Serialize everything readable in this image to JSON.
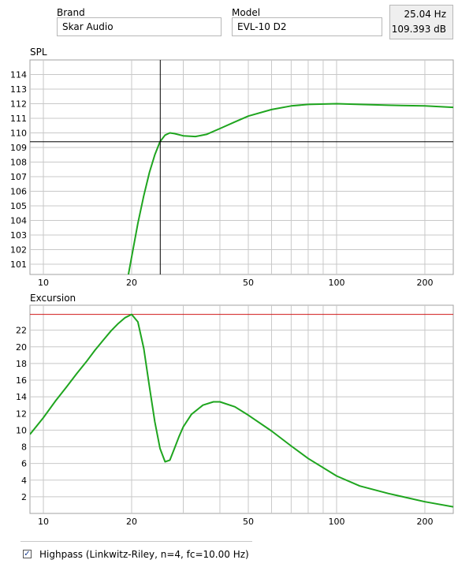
{
  "header": {
    "brand_label": "Brand",
    "brand_value": "Skar Audio",
    "model_label": "Model",
    "model_value": "EVL-10 D2",
    "readout_freq": "25.04 Hz",
    "readout_spl": "109.393 dB"
  },
  "spl_panel": {
    "title": "SPL"
  },
  "excursion_panel": {
    "title": "Excursion"
  },
  "filter": {
    "checked": true,
    "checkbox_glyph": "✓",
    "label": "Highpass (Linkwitz-Riley, n=4, fc=10.00 Hz)"
  },
  "colors": {
    "curve": "#1fa51f",
    "grid": "#c8c8c8",
    "cursor": "#000000",
    "limit_line": "#d01818"
  },
  "chart_data": [
    {
      "type": "line",
      "title": "SPL",
      "x_scale": "log",
      "xlim": [
        9,
        250
      ],
      "ylim": [
        100.3,
        115
      ],
      "x_tick_labels": [
        "10",
        "20",
        "50",
        "100",
        "200"
      ],
      "y_tick_labels": [
        "101",
        "102",
        "103",
        "104",
        "105",
        "106",
        "107",
        "108",
        "109",
        "110",
        "111",
        "112",
        "113",
        "114"
      ],
      "cursor": {
        "x": 25.04,
        "y": 109.393
      },
      "series": [
        {
          "x": [
            19.5,
            20,
            21,
            22,
            23,
            24,
            25,
            26,
            27,
            28,
            30,
            33,
            36,
            40,
            45,
            50,
            60,
            70,
            80,
            100,
            120,
            150,
            200,
            250
          ],
          "y": [
            100.3,
            101.5,
            103.8,
            105.7,
            107.3,
            108.5,
            109.4,
            109.85,
            110.0,
            109.95,
            109.8,
            109.75,
            109.9,
            110.3,
            110.75,
            111.15,
            111.6,
            111.85,
            111.95,
            112.0,
            111.95,
            111.9,
            111.85,
            111.75
          ]
        }
      ]
    },
    {
      "type": "line",
      "title": "Excursion",
      "x_scale": "log",
      "xlim": [
        9,
        250
      ],
      "ylim": [
        0,
        25
      ],
      "x_tick_labels": [
        "10",
        "20",
        "50",
        "100",
        "200"
      ],
      "y_tick_labels": [
        "2",
        "4",
        "6",
        "8",
        "10",
        "12",
        "14",
        "16",
        "18",
        "20",
        "22"
      ],
      "limit_line": 23.9,
      "series": [
        {
          "x": [
            9,
            10,
            11,
            12,
            13,
            14,
            15,
            16,
            17,
            18,
            19,
            20,
            21,
            22,
            23,
            24,
            25,
            26,
            27,
            28,
            29,
            30,
            32,
            35,
            38,
            40,
            45,
            50,
            60,
            70,
            80,
            100,
            120,
            150,
            200,
            250
          ],
          "y": [
            9.5,
            11.5,
            13.5,
            15.2,
            16.8,
            18.2,
            19.6,
            20.8,
            21.9,
            22.8,
            23.5,
            23.9,
            23.0,
            19.8,
            15.2,
            11.0,
            7.8,
            6.2,
            6.4,
            7.8,
            9.2,
            10.4,
            11.9,
            13.0,
            13.4,
            13.4,
            12.8,
            11.8,
            9.9,
            8.1,
            6.6,
            4.5,
            3.3,
            2.4,
            1.4,
            0.8
          ]
        }
      ]
    }
  ]
}
